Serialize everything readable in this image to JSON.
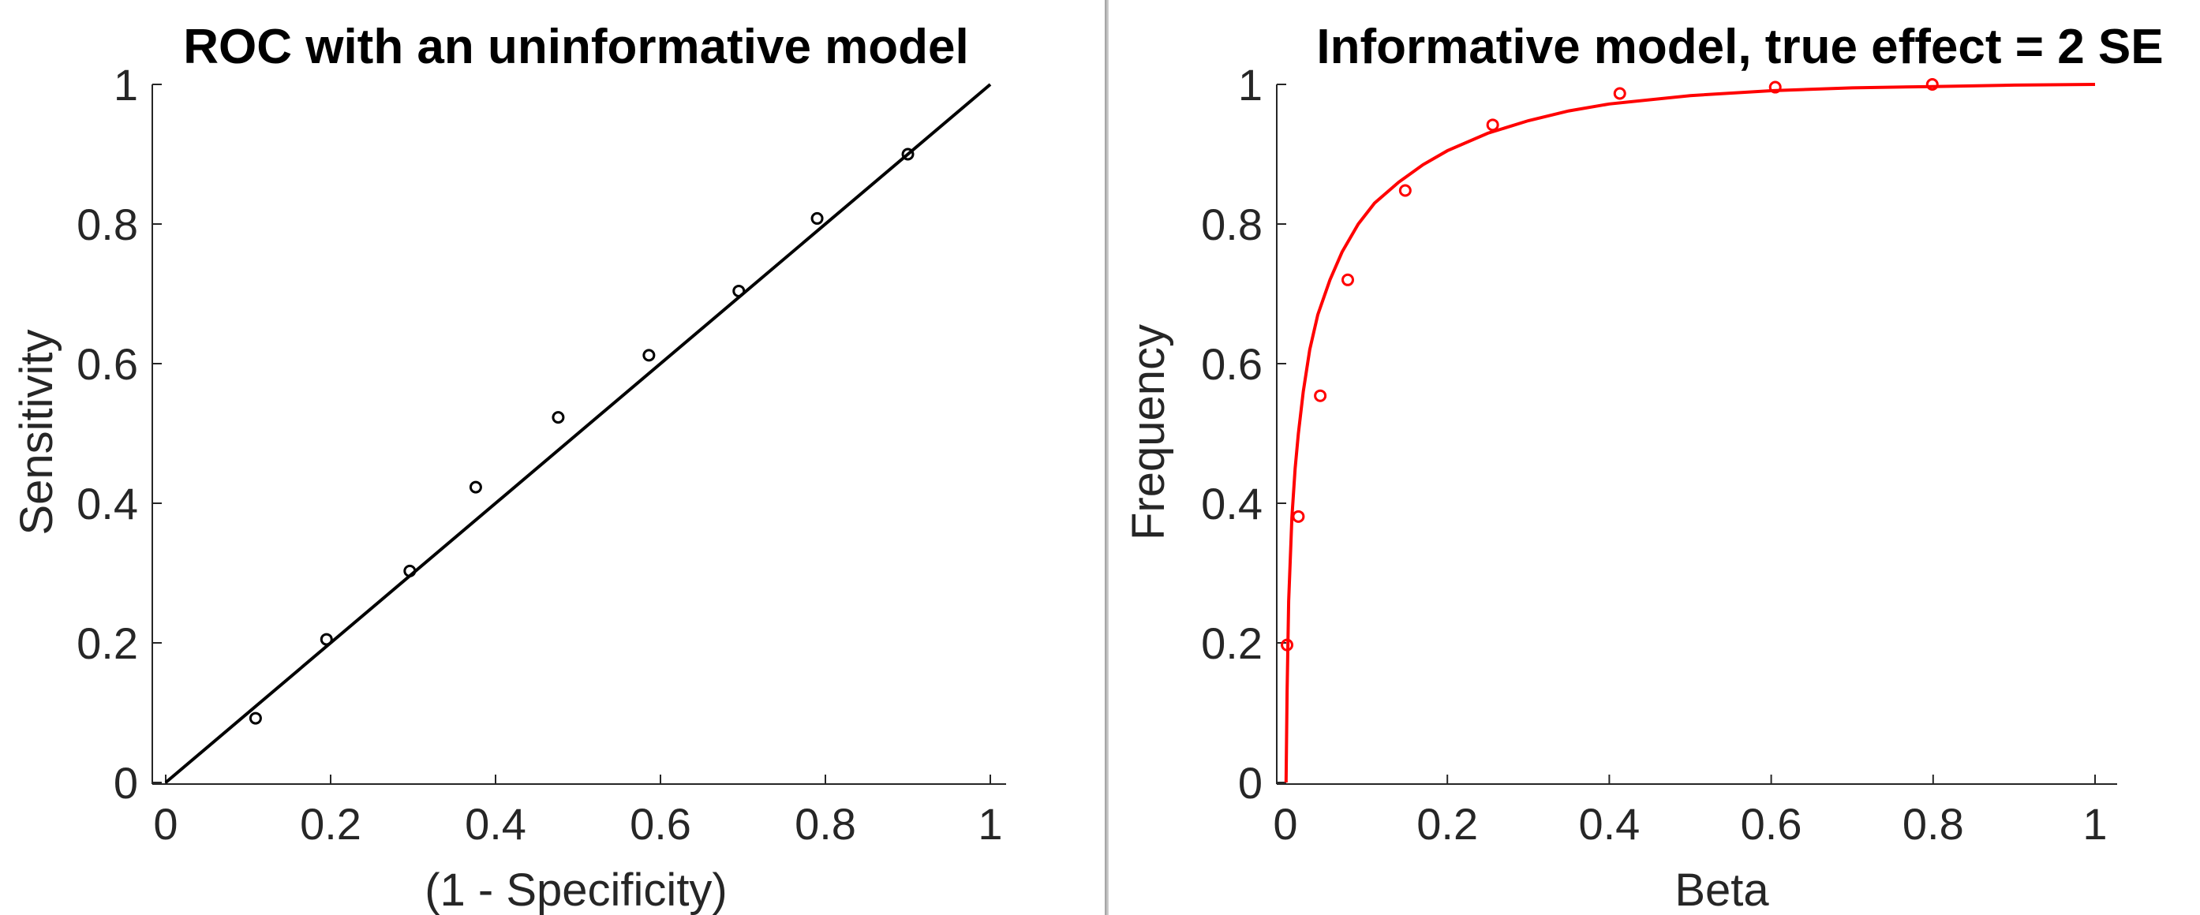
{
  "chart_data": [
    {
      "type": "scatter",
      "title": "ROC with an uninformative model",
      "xlabel": "(1 - Specificity)",
      "ylabel": "Sensitivity",
      "xlim": [
        0,
        1
      ],
      "ylim": [
        0,
        1
      ],
      "xticks": [
        "0",
        "0.2",
        "0.4",
        "0.6",
        "0.8",
        "1"
      ],
      "yticks": [
        "0",
        "0.2",
        "0.4",
        "0.6",
        "0.8",
        "1"
      ],
      "grid": false,
      "color": "#000000",
      "series": [
        {
          "type": "scatter",
          "marker": "circle-open",
          "x": [
            0.109,
            0.195,
            0.296,
            0.376,
            0.476,
            0.586,
            0.695,
            0.79,
            0.9
          ],
          "y": [
            0.092,
            0.205,
            0.303,
            0.423,
            0.523,
            0.612,
            0.704,
            0.808,
            0.9
          ]
        },
        {
          "type": "line",
          "x": [
            0,
            1
          ],
          "y": [
            0,
            1
          ]
        }
      ]
    },
    {
      "type": "scatter",
      "title": "Informative model, true effect = 2 SE",
      "xlabel": "Beta",
      "ylabel": "Frequency",
      "xlim": [
        0,
        1
      ],
      "ylim": [
        0,
        1
      ],
      "xticks": [
        "0",
        "0.2",
        "0.4",
        "0.6",
        "0.8",
        "1"
      ],
      "yticks": [
        "0",
        "0.2",
        "0.4",
        "0.6",
        "0.8",
        "1"
      ],
      "grid": false,
      "color": "#ff0000",
      "series": [
        {
          "type": "scatter",
          "marker": "circle-open",
          "x": [
            0.002,
            0.016,
            0.043,
            0.077,
            0.148,
            0.256,
            0.413,
            0.605,
            0.799
          ],
          "y": [
            0.197,
            0.381,
            0.554,
            0.72,
            0.848,
            0.942,
            0.987,
            0.996,
            1.0
          ]
        },
        {
          "type": "line",
          "x": [
            0.0008,
            0.002,
            0.004,
            0.008,
            0.012,
            0.016,
            0.022,
            0.03,
            0.04,
            0.055,
            0.07,
            0.09,
            0.11,
            0.14,
            0.17,
            0.2,
            0.25,
            0.3,
            0.35,
            0.4,
            0.5,
            0.6,
            0.7,
            0.8,
            0.9,
            1.0
          ],
          "y": [
            0.0,
            0.13,
            0.26,
            0.38,
            0.45,
            0.5,
            0.56,
            0.62,
            0.67,
            0.72,
            0.76,
            0.8,
            0.83,
            0.86,
            0.885,
            0.905,
            0.93,
            0.948,
            0.962,
            0.972,
            0.984,
            0.991,
            0.995,
            0.997,
            0.999,
            1.0
          ]
        }
      ]
    }
  ]
}
